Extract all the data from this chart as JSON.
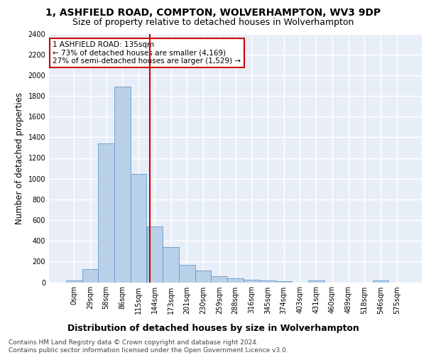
{
  "title": "1, ASHFIELD ROAD, COMPTON, WOLVERHAMPTON, WV3 9DP",
  "subtitle": "Size of property relative to detached houses in Wolverhampton",
  "xlabel": "Distribution of detached houses by size in Wolverhampton",
  "ylabel": "Number of detached properties",
  "categories": [
    "0sqm",
    "29sqm",
    "58sqm",
    "86sqm",
    "115sqm",
    "144sqm",
    "173sqm",
    "201sqm",
    "230sqm",
    "259sqm",
    "288sqm",
    "316sqm",
    "345sqm",
    "374sqm",
    "403sqm",
    "431sqm",
    "460sqm",
    "489sqm",
    "518sqm",
    "546sqm",
    "575sqm"
  ],
  "values": [
    15,
    130,
    1340,
    1890,
    1045,
    540,
    340,
    165,
    110,
    60,
    35,
    25,
    18,
    8,
    0,
    20,
    0,
    0,
    0,
    15,
    0
  ],
  "bar_color": "#b8d0e8",
  "bar_edge_color": "#6699cc",
  "vline_color": "#cc0000",
  "annotation_text": "1 ASHFIELD ROAD: 135sqm\n← 73% of detached houses are smaller (4,169)\n27% of semi-detached houses are larger (1,529) →",
  "annotation_box_color": "white",
  "annotation_box_edge_color": "#cc0000",
  "ylim": [
    0,
    2400
  ],
  "yticks": [
    0,
    200,
    400,
    600,
    800,
    1000,
    1200,
    1400,
    1600,
    1800,
    2000,
    2200,
    2400
  ],
  "footer_line1": "Contains HM Land Registry data © Crown copyright and database right 2024.",
  "footer_line2": "Contains public sector information licensed under the Open Government Licence v3.0.",
  "bg_color": "#e8eef8",
  "grid_color": "#ffffff",
  "title_fontsize": 10,
  "subtitle_fontsize": 9,
  "label_fontsize": 8.5,
  "tick_fontsize": 7,
  "annot_fontsize": 7.5,
  "footer_fontsize": 6.5
}
